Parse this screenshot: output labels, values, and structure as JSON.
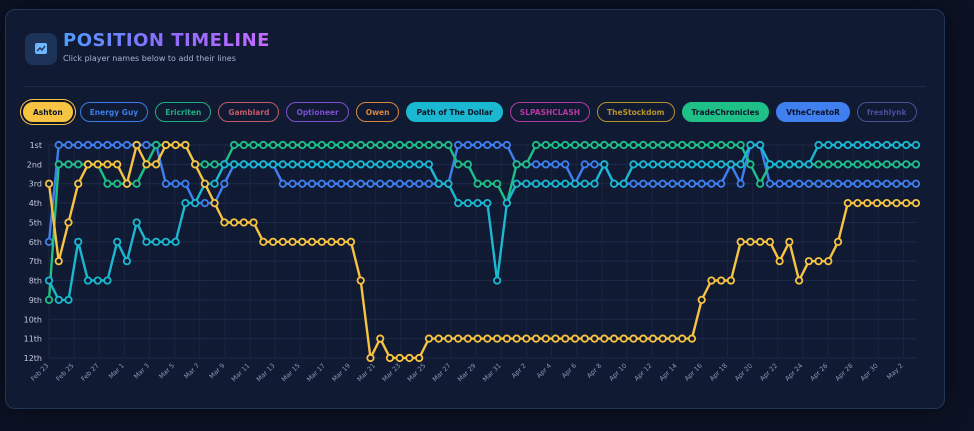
{
  "header": {
    "title": "POSITION TIMELINE",
    "subtitle": "Click player names below to add their lines"
  },
  "players": [
    {
      "name": "Ashton",
      "color": "#f6c343",
      "active": true
    },
    {
      "name": "Energy Guy",
      "color": "#3b7ce8",
      "active": false
    },
    {
      "name": "Ericriten",
      "color": "#1fae80",
      "active": false
    },
    {
      "name": "Gamblard",
      "color": "#c35a66",
      "active": false
    },
    {
      "name": "Optioneer",
      "color": "#7a4fd0",
      "active": false
    },
    {
      "name": "Owen",
      "color": "#d9883a",
      "active": false
    },
    {
      "name": "Path of The Dollar",
      "color": "#1bb8d1",
      "active": true
    },
    {
      "name": "SLPASHCLASH",
      "color": "#b23aa0",
      "active": false
    },
    {
      "name": "TheStockdom",
      "color": "#b6922a",
      "active": false
    },
    {
      "name": "TradeChronicles",
      "color": "#1fbf88",
      "active": true
    },
    {
      "name": "VtheCreatoR",
      "color": "#3f7ff0",
      "active": true
    },
    {
      "name": "freshlynk",
      "color": "#4a4f9c",
      "active": false
    }
  ],
  "chart_data": {
    "type": "line",
    "y_labels": [
      "1st",
      "2nd",
      "3rd",
      "4th",
      "5th",
      "6th",
      "7th",
      "8th",
      "9th",
      "10th",
      "11th",
      "12th"
    ],
    "ylim": [
      1,
      12
    ],
    "y_reversed": true,
    "x_tick_labels": [
      "Feb 23",
      "Feb 25",
      "Feb 27",
      "Mar 1",
      "Mar 3",
      "Mar 5",
      "Mar 7",
      "Mar 9",
      "Mar 11",
      "Mar 13",
      "Mar 15",
      "Mar 17",
      "Mar 19",
      "Mar 21",
      "Mar 23",
      "Mar 25",
      "Mar 27",
      "Mar 29",
      "Mar 31",
      "Apr 2",
      "Apr 4",
      "Apr 6",
      "Apr 8",
      "Apr 10",
      "Apr 12",
      "Apr 14",
      "Apr 16",
      "Apr 18",
      "Apr 20",
      "Apr 22",
      "Apr 24",
      "Apr 26",
      "Apr 28",
      "Apr 30",
      "May 2"
    ],
    "x_start": "Feb 23",
    "x_end": "May 3",
    "grid": true,
    "series": [
      {
        "name": "VtheCreatoR",
        "color": "#3f7ff0",
        "values": [
          6,
          1,
          1,
          1,
          1,
          1,
          1,
          1,
          1,
          1,
          1,
          1,
          3,
          3,
          3,
          4,
          4,
          4,
          3,
          2,
          2,
          2,
          2,
          2,
          3,
          3,
          3,
          3,
          3,
          3,
          3,
          3,
          3,
          3,
          3,
          3,
          3,
          3,
          3,
          3,
          3,
          3,
          1,
          1,
          1,
          1,
          1,
          1,
          2,
          2,
          2,
          2,
          2,
          2,
          3,
          2,
          2,
          2,
          3,
          3,
          3,
          3,
          3,
          3,
          3,
          3,
          3,
          3,
          3,
          3,
          2,
          3,
          1,
          1,
          3,
          3,
          3,
          3,
          3,
          3,
          3,
          3,
          3,
          3,
          3,
          3,
          3,
          3,
          3,
          3
        ]
      },
      {
        "name": "TradeChronicles",
        "color": "#1fbf88",
        "values": [
          9,
          2,
          2,
          2,
          2,
          2,
          3,
          3,
          3,
          3,
          2,
          1,
          1,
          1,
          1,
          2,
          2,
          2,
          2,
          1,
          1,
          1,
          1,
          1,
          1,
          1,
          1,
          1,
          1,
          1,
          1,
          1,
          1,
          1,
          1,
          1,
          1,
          1,
          1,
          1,
          1,
          1,
          2,
          2,
          3,
          3,
          3,
          4,
          2,
          2,
          1,
          1,
          1,
          1,
          1,
          1,
          1,
          1,
          1,
          1,
          1,
          1,
          1,
          1,
          1,
          1,
          1,
          1,
          1,
          1,
          1,
          1,
          2,
          3,
          2,
          2,
          2,
          2,
          2,
          2,
          2,
          2,
          2,
          2,
          2,
          2,
          2,
          2,
          2,
          2
        ]
      },
      {
        "name": "Path of The Dollar",
        "color": "#1bb8d1",
        "values": [
          8,
          9,
          9,
          6,
          8,
          8,
          8,
          6,
          7,
          5,
          6,
          6,
          6,
          6,
          4,
          4,
          3,
          3,
          2,
          2,
          2,
          2,
          2,
          2,
          2,
          2,
          2,
          2,
          2,
          2,
          2,
          2,
          2,
          2,
          2,
          2,
          2,
          2,
          2,
          2,
          3,
          3,
          4,
          4,
          4,
          4,
          8,
          4,
          3,
          3,
          3,
          3,
          3,
          3,
          3,
          3,
          3,
          2,
          3,
          3,
          2,
          2,
          2,
          2,
          2,
          2,
          2,
          2,
          2,
          2,
          2,
          2,
          1,
          1,
          2,
          2,
          2,
          2,
          2,
          1,
          1,
          1,
          1,
          1,
          1,
          1,
          1,
          1,
          1,
          1
        ]
      },
      {
        "name": "Ashton",
        "color": "#f6c343",
        "values": [
          3,
          7,
          5,
          3,
          2,
          2,
          2,
          2,
          3,
          1,
          2,
          2,
          1,
          1,
          1,
          2,
          3,
          4,
          5,
          5,
          5,
          5,
          6,
          6,
          6,
          6,
          6,
          6,
          6,
          6,
          6,
          6,
          8,
          12,
          11,
          12,
          12,
          12,
          12,
          11,
          11,
          11,
          11,
          11,
          11,
          11,
          11,
          11,
          11,
          11,
          11,
          11,
          11,
          11,
          11,
          11,
          11,
          11,
          11,
          11,
          11,
          11,
          11,
          11,
          11,
          11,
          11,
          9,
          8,
          8,
          8,
          6,
          6,
          6,
          6,
          7,
          6,
          8,
          7,
          7,
          7,
          6,
          4,
          4,
          4,
          4,
          4,
          4,
          4,
          4
        ]
      }
    ]
  }
}
